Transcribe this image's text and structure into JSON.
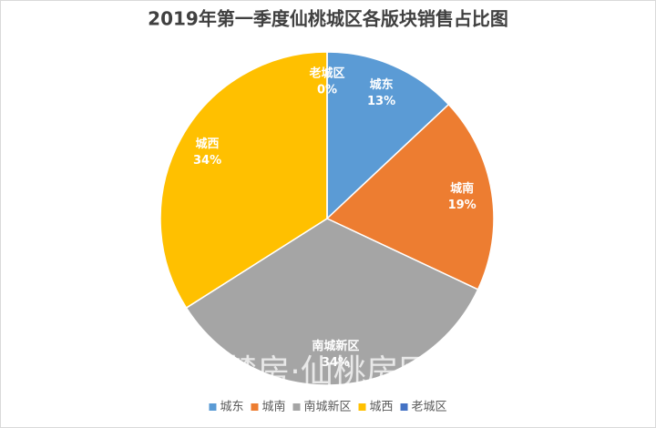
{
  "chart_data": {
    "type": "pie",
    "title": "2019年第一季度仙桃城区各版块销售占比图",
    "categories": [
      "城东",
      "城南",
      "南城新区",
      "城西",
      "老城区"
    ],
    "values": [
      13,
      19,
      34,
      34,
      0
    ],
    "value_labels": [
      "13%",
      "19%",
      "34%",
      "34%",
      "0%"
    ],
    "colors": [
      "#5b9bd5",
      "#ed7d31",
      "#a5a5a5",
      "#ffc000",
      "#4472c4"
    ],
    "legend": "bottom",
    "watermark": "楚房·仙桃房网"
  }
}
